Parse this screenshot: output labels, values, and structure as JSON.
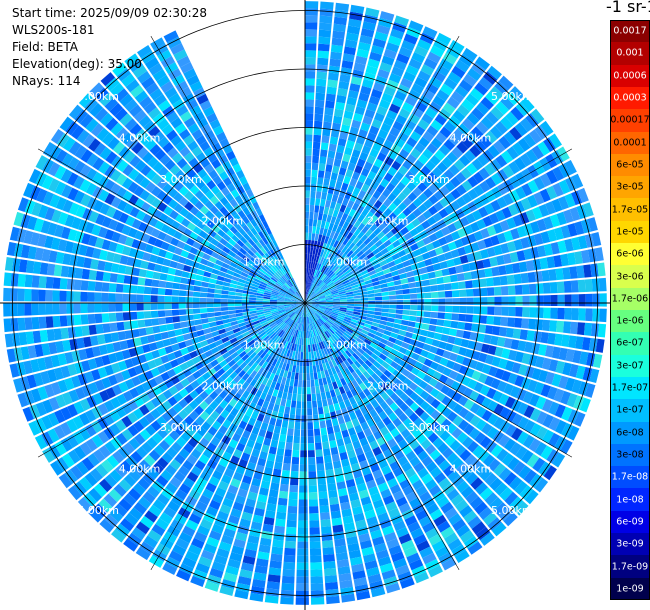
{
  "info": {
    "start_time": "Start time: 2025/09/09 02:30:28",
    "instrument": "WLS200s-181",
    "field": "Field: BETA",
    "elevation": "Elevation(deg): 35.00",
    "nrays": "NRays: 114"
  },
  "colorbar": {
    "title": "-1 sr-1",
    "labels": [
      "0.0017",
      "0.001",
      "0.0006",
      "0.0003",
      "0.00017",
      "0.0001",
      "6e-05",
      "3e-05",
      "1.7e-05",
      "1e-05",
      "6e-06",
      "3e-06",
      "1.7e-06",
      "1e-06",
      "6e-07",
      "3e-07",
      "1.7e-07",
      "1e-07",
      "6e-08",
      "3e-08",
      "1.7e-08",
      "1e-08",
      "6e-09",
      "3e-09",
      "1.7e-09",
      "1e-09"
    ],
    "colors": [
      "#8b0000",
      "#b30000",
      "#d90000",
      "#ff1a00",
      "#ff4000",
      "#ff6600",
      "#ff8c00",
      "#ffa500",
      "#ffbf00",
      "#ffd700",
      "#ffff33",
      "#d9ff4d",
      "#a6ff66",
      "#66ff80",
      "#33ffb3",
      "#1affdd",
      "#00e6ff",
      "#00bfff",
      "#0099ff",
      "#0073ff",
      "#004dff",
      "#0026ff",
      "#0000e6",
      "#0000b3",
      "#000080",
      "#00004d"
    ]
  },
  "chart_data": {
    "type": "heatmap",
    "projection": "polar (PPI scan)",
    "field": "BETA",
    "elevation_deg": 35.0,
    "n_rays": 114,
    "missing_sector_deg": [
      335,
      360
    ],
    "range_rings_km": [
      1.0,
      2.0,
      3.0,
      4.0,
      5.0
    ],
    "range_ring_labels": [
      "1.00km",
      "2.00km",
      "3.00km",
      "4.00km",
      "5.00km"
    ],
    "max_range_km": 5.2,
    "grid": true,
    "dominant_value_range": [
      "3e-08",
      "3e-07"
    ],
    "colorbar_ticks": [
      "0.0017",
      "0.001",
      "0.0006",
      "0.0003",
      "0.00017",
      "0.0001",
      "6e-05",
      "3e-05",
      "1.7e-05",
      "1e-05",
      "6e-06",
      "3e-06",
      "1.7e-06",
      "1e-06",
      "6e-07",
      "3e-07",
      "1.7e-07",
      "1e-07",
      "6e-08",
      "3e-08",
      "1.7e-08",
      "1e-08",
      "6e-09",
      "3e-09",
      "1.7e-09",
      "1e-09"
    ]
  }
}
